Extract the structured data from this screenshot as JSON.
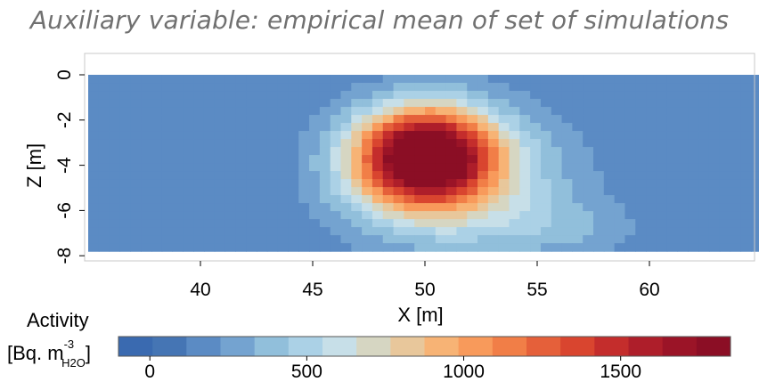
{
  "title": "Auxiliary variable: empirical mean of set of simulations",
  "chart_data": {
    "type": "heatmap",
    "title": "Auxiliary variable: empirical mean of set of simulations",
    "xlabel": "X [m]",
    "ylabel": "Z [m]",
    "xlim": [
      35,
      65
    ],
    "ylim": [
      -8,
      0
    ],
    "x_ticks": [
      40,
      45,
      50,
      55,
      60
    ],
    "y_ticks": [
      0,
      -2,
      -4,
      -6,
      -8
    ],
    "grid": false,
    "data_extent": {
      "x": [
        35,
        65
      ],
      "z": [
        0,
        -7.8
      ]
    },
    "field": {
      "peak": {
        "x": 50.0,
        "z": -3.6,
        "value": 1800
      },
      "background_value": 120,
      "shape": "radial plume, elongated downward and to the right (toward X≈60 at Z≈-7)"
    },
    "colorbar": {
      "label_line1": "Activity",
      "label_line2": "[Bq. m",
      "label_sup": "-3",
      "label_sub": "H2O",
      "label_end": "]",
      "range": [
        -100,
        1850
      ],
      "ticks": [
        0,
        500,
        1000,
        1500
      ],
      "colors": [
        "#3a6ab0",
        "#4575b4",
        "#5b8bc4",
        "#74a3d0",
        "#91bfdb",
        "#abd1e6",
        "#c7dfe8",
        "#d6d6c2",
        "#e8c79b",
        "#f7b375",
        "#f89a5b",
        "#f17e47",
        "#e5603a",
        "#d9452f",
        "#c42d2c",
        "#ae1e2a",
        "#9b1427",
        "#8b0e25"
      ]
    }
  }
}
